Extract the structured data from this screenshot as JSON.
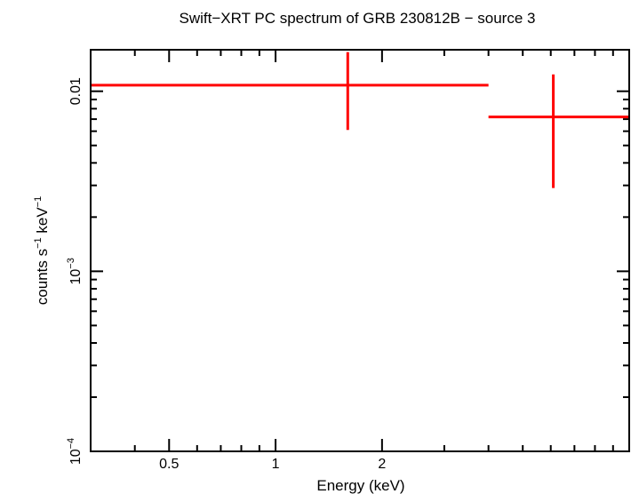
{
  "chart_data": {
    "type": "scatter",
    "title": "Swift−XRT PC spectrum of GRB 230812B − source 3",
    "xlabel": "Energy (keV)",
    "ylabel": {
      "prefix": "counts s",
      "exp1": "−1",
      "middle": " keV",
      "exp2": "−1"
    },
    "x_scale": "log",
    "y_scale": "log",
    "xlim": [
      0.3,
      10
    ],
    "ylim": [
      0.0001,
      0.017
    ],
    "x_ticks": [
      {
        "value": 0.5,
        "label": "0.5"
      },
      {
        "value": 1,
        "label": "1"
      },
      {
        "value": 2,
        "label": "2"
      }
    ],
    "y_ticks": [
      {
        "value": 0.01,
        "label": "0.01"
      },
      {
        "value": 0.001,
        "label": "10",
        "exp": "−3"
      },
      {
        "value": 0.0001,
        "label": "10",
        "exp": "−4"
      }
    ],
    "series": [
      {
        "color": "#ff0000",
        "points": [
          {
            "x": 1.6,
            "xlo": 0.3,
            "xhi": 4.0,
            "y": 0.0108,
            "ylo": 0.0061,
            "yhi": 0.0165
          },
          {
            "x": 6.1,
            "xlo": 4.0,
            "xhi": 10.0,
            "y": 0.0072,
            "ylo": 0.0029,
            "yhi": 0.0124
          }
        ]
      }
    ]
  }
}
